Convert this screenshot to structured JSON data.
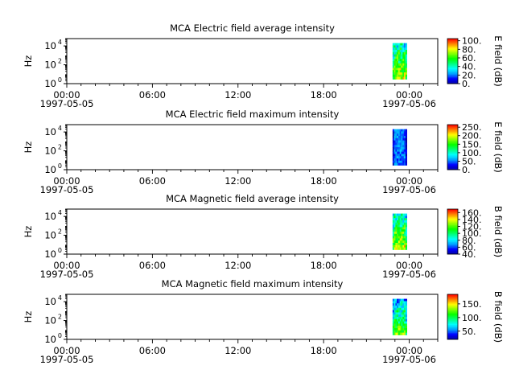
{
  "chart_data": [
    {
      "type": "heatmap",
      "title": "MCA  Electric field average intensity",
      "ylabel": "Hz",
      "y_scale": "log",
      "y_ticks": [
        {
          "base": "10",
          "exp": "0"
        },
        {
          "base": "10",
          "exp": "2"
        },
        {
          "base": "10",
          "exp": "4"
        }
      ],
      "x_range": [
        "1997-05-05 00:00",
        "1997-05-06 02:00"
      ],
      "x_ticks": [
        "00:00",
        "06:00",
        "12:00",
        "18:00",
        "00:00"
      ],
      "x_dates": [
        "1997-05-05",
        "1997-05-06"
      ],
      "colorbar": {
        "label": "E field (dB)",
        "range": [
          0,
          105
        ],
        "ticks": [
          "0.",
          "20.",
          "40.",
          "60.",
          "80.",
          "100."
        ]
      },
      "data_span": {
        "start": "22:50",
        "end": "23:50",
        "freq_range": [
          3,
          20000
        ]
      }
    },
    {
      "type": "heatmap",
      "title": "MCA  Electric field maximum intensity",
      "ylabel": "Hz",
      "y_scale": "log",
      "y_ticks": [
        {
          "base": "10",
          "exp": "0"
        },
        {
          "base": "10",
          "exp": "2"
        },
        {
          "base": "10",
          "exp": "4"
        }
      ],
      "x_range": [
        "1997-05-05 00:00",
        "1997-05-06 02:00"
      ],
      "x_ticks": [
        "00:00",
        "06:00",
        "12:00",
        "18:00",
        "00:00"
      ],
      "x_dates": [
        "1997-05-05",
        "1997-05-06"
      ],
      "colorbar": {
        "label": "E field (dB)",
        "range": [
          0,
          265
        ],
        "ticks": [
          "0.",
          "50.",
          "100.",
          "150.",
          "200.",
          "250."
        ]
      },
      "data_span": {
        "start": "22:50",
        "end": "23:50",
        "freq_range": [
          3,
          20000
        ]
      }
    },
    {
      "type": "heatmap",
      "title": "MCA  Magnetic field average intensity",
      "ylabel": "Hz",
      "y_scale": "log",
      "y_ticks": [
        {
          "base": "10",
          "exp": "0"
        },
        {
          "base": "10",
          "exp": "2"
        },
        {
          "base": "10",
          "exp": "4"
        }
      ],
      "x_range": [
        "1997-05-05 00:00",
        "1997-05-06 02:00"
      ],
      "x_ticks": [
        "00:00",
        "06:00",
        "12:00",
        "18:00",
        "00:00"
      ],
      "x_dates": [
        "1997-05-05",
        "1997-05-06"
      ],
      "colorbar": {
        "label": "B field (dB)",
        "range": [
          40,
          170
        ],
        "ticks": [
          "40.",
          "60.",
          "80.",
          "100.",
          "120.",
          "140.",
          "160."
        ]
      },
      "data_span": {
        "start": "22:50",
        "end": "23:50",
        "freq_range": [
          3,
          20000
        ]
      }
    },
    {
      "type": "heatmap",
      "title": "MCA  Magnetic field maximum intensity",
      "ylabel": "Hz",
      "y_scale": "log",
      "y_ticks": [
        {
          "base": "10",
          "exp": "0"
        },
        {
          "base": "10",
          "exp": "2"
        },
        {
          "base": "10",
          "exp": "4"
        }
      ],
      "x_range": [
        "1997-05-05 00:00",
        "1997-05-06 02:00"
      ],
      "x_ticks": [
        "00:00",
        "06:00",
        "12:00",
        "18:00",
        "00:00"
      ],
      "x_dates": [
        "1997-05-05",
        "1997-05-06"
      ],
      "colorbar": {
        "label": "B field (dB)",
        "range": [
          20,
          185
        ],
        "ticks": [
          "50.",
          "100.",
          "150."
        ]
      },
      "data_span": {
        "start": "22:50",
        "end": "23:50",
        "freq_range": [
          3,
          20000
        ]
      }
    }
  ],
  "colors": {
    "colormap": [
      "#0000a0",
      "#0000ff",
      "#00a0ff",
      "#00ffff",
      "#00ff80",
      "#00ff00",
      "#80ff00",
      "#ffff00",
      "#ff8000",
      "#ff0000"
    ],
    "axis": "#000000",
    "background": "#ffffff"
  }
}
